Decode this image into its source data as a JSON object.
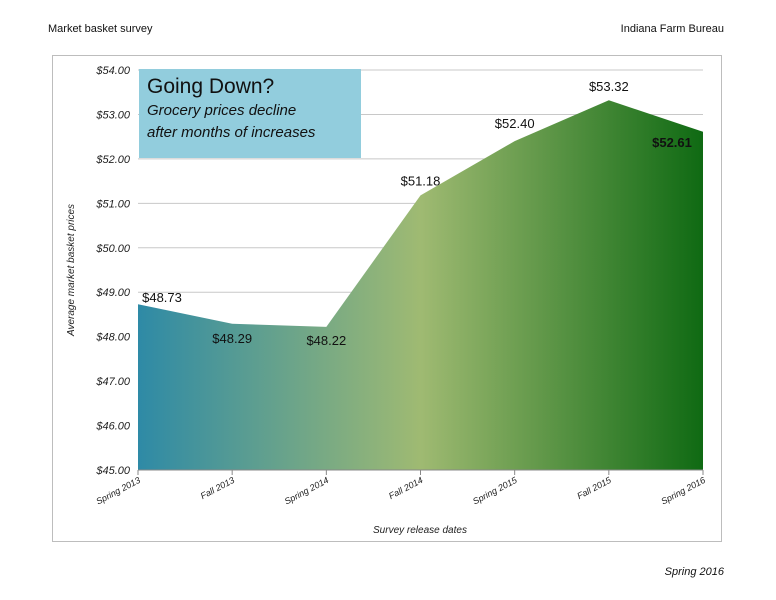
{
  "header": {
    "left": "Market basket survey",
    "right": "Indiana Farm Bureau"
  },
  "footer": {
    "date": "Spring 2016"
  },
  "callout": {
    "title": "Going Down?",
    "line1": "Grocery prices decline",
    "line2": "after months of increases"
  },
  "colors": {
    "start": "#2e8aa6",
    "mid": "#9fba72",
    "end": "#0f6a13",
    "callout_bg": "#92cddd"
  },
  "chart_data": {
    "type": "area",
    "categories": [
      "Spring 2013",
      "Fall 2013",
      "Spring 2014",
      "Fall 2014",
      "Spring 2015",
      "Fall 2015",
      "Spring 2016"
    ],
    "values": [
      48.73,
      48.29,
      48.22,
      51.18,
      52.4,
      53.32,
      52.61
    ],
    "data_labels": [
      "$48.73",
      "$48.29",
      "$48.22",
      "$51.18",
      "$52.40",
      "$53.32",
      "$52.61"
    ],
    "ylabel": "Average market basket prices",
    "xlabel": "Survey release dates",
    "ylim": [
      45,
      54
    ],
    "yticks": [
      45,
      46,
      47,
      48,
      49,
      50,
      51,
      52,
      53,
      54
    ],
    "ytick_labels": [
      "$45.00",
      "$46.00",
      "$47.00",
      "$48.00",
      "$49.00",
      "$50.00",
      "$51.00",
      "$52.00",
      "$53.00",
      "$54.00"
    ],
    "grid": true
  }
}
